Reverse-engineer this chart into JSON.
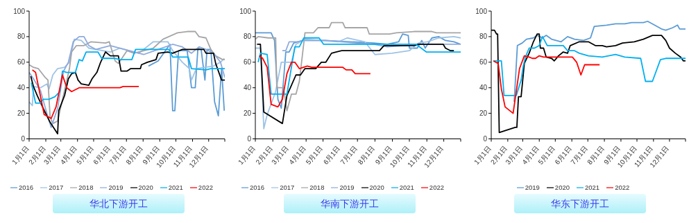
{
  "chart_data": [
    {
      "type": "line",
      "title": "华北下游开工",
      "xlim": [
        "--01-01",
        "--12-31"
      ],
      "ylim": [
        0,
        100
      ],
      "yticks": [
        0,
        20,
        40,
        60,
        80,
        100
      ],
      "xticks": [
        {
          "value": "--01-01",
          "label": "1月1日"
        },
        {
          "value": "--02-01",
          "label": "2月1日"
        },
        {
          "value": "--03-01",
          "label": "3月1日"
        },
        {
          "value": "--04-01",
          "label": "4月1日"
        },
        {
          "value": "--05-01",
          "label": "5月1日"
        },
        {
          "value": "--06-01",
          "label": "6月1日"
        },
        {
          "value": "--07-01",
          "label": "7月1日"
        },
        {
          "value": "--08-01",
          "label": "8月1日"
        },
        {
          "value": "--09-01",
          "label": "9月1日"
        },
        {
          "value": "--10-01",
          "label": "10月1日"
        },
        {
          "value": "--11-01",
          "label": "11月1日"
        },
        {
          "value": "--12-01",
          "label": "12月1日"
        },
        {
          "value": "--12-31",
          "label": null
        }
      ],
      "legend": "bottom",
      "series": [
        {
          "name": "2016",
          "color": "#5b9bd5",
          "x": [
            "--08-11",
            "--08-29",
            "--09-20",
            "--09-25",
            "--09-29",
            "--10-06",
            "--10-22",
            "--10-30",
            "--11-06",
            "--11-11",
            "--11-17",
            "--11-24",
            "--11-28",
            "--12-05",
            "--12-12",
            "--12-19",
            "--12-25",
            "--12-30"
          ],
          "values": [
            57,
            61,
            74,
            22,
            22,
            69,
            69,
            40,
            40,
            71,
            70,
            46,
            70,
            70,
            29,
            18,
            55,
            22
          ]
        },
        {
          "name": "2017",
          "color": "#9dc3e6",
          "x": [
            "--01-01",
            "--01-07",
            "--01-09",
            "--01-22",
            "--02-03",
            "--02-07",
            "--02-14",
            "--02-23",
            "--03-08",
            "--03-17",
            "--03-26",
            "--04-08",
            "--04-22",
            "--06-01",
            "--06-19",
            "--07-24",
            "--08-20",
            "--09-16",
            "--09-25",
            "--10-13",
            "--10-26",
            "--10-30",
            "--11-08",
            "--12-10",
            "--12-23",
            "--12-30"
          ],
          "values": [
            29,
            26,
            41,
            40,
            43,
            39,
            50,
            55,
            56,
            60,
            78,
            77,
            71,
            68,
            71,
            67,
            76,
            76,
            69,
            60,
            55,
            46,
            55,
            57,
            60,
            63
          ]
        },
        {
          "name": "2018",
          "color": "#a5a5a5",
          "x": [
            "--01-01",
            "--01-09",
            "--01-18",
            "--01-31",
            "--02-05",
            "--02-09",
            "--02-14",
            "--02-23",
            "--03-17",
            "--03-21",
            "--03-30",
            "--04-13",
            "--04-26",
            "--05-23",
            "--05-30",
            "--06-10",
            "--06-16",
            "--07-02",
            "--07-15",
            "--08-20",
            "--09-07",
            "--10-04",
            "--10-22",
            "--11-06",
            "--11-13",
            "--11-26",
            "--12-05",
            "--12-14",
            "--12-27",
            "--12-31"
          ],
          "values": [
            58,
            56,
            55,
            48,
            46,
            17,
            12,
            14,
            55,
            68,
            73,
            73,
            76,
            75,
            76,
            61,
            59,
            69,
            67,
            71,
            78,
            83,
            84,
            84,
            80,
            79,
            70,
            65,
            62,
            62
          ]
        },
        {
          "name": "2019",
          "color": "#8faadc",
          "x": [
            "--01-01",
            "--01-09",
            "--01-22",
            "--02-05",
            "--02-11",
            "--02-23",
            "--03-06",
            "--03-15",
            "--03-24",
            "--04-04",
            "--04-13",
            "--04-22",
            "--05-05",
            "--06-01",
            "--07-06",
            "--08-02",
            "--08-29",
            "--09-25",
            "--10-13",
            "--10-30",
            "--11-13",
            "--11-26",
            "--12-10",
            "--12-23",
            "--12-31"
          ],
          "values": [
            52,
            47,
            38,
            17,
            9,
            24,
            53,
            60,
            76,
            80,
            80,
            73,
            70,
            73,
            69,
            66,
            70,
            74,
            72,
            67,
            72,
            70,
            67,
            60,
            48
          ]
        },
        {
          "name": "2020",
          "color": "#000000",
          "x": [
            "--01-04",
            "--01-09",
            "--01-16",
            "--01-27",
            "--02-09",
            "--02-23",
            "--02-25",
            "--03-08",
            "--03-15",
            "--03-21",
            "--03-28",
            "--04-02",
            "--04-08",
            "--04-22",
            "--04-28",
            "--05-07",
            "--05-14",
            "--05-23",
            "--06-01",
            "--06-16",
            "--06-21",
            "--07-02",
            "--07-09",
            "--07-27",
            "--07-29",
            "--08-09",
            "--08-25",
            "--08-29",
            "--09-16",
            "--09-25",
            "--10-13",
            "--11-22",
            "--11-26",
            "--12-10",
            "--12-14",
            "--12-25",
            "--12-31"
          ],
          "values": [
            49,
            41,
            34,
            24,
            13,
            4,
            22,
            34,
            47,
            51,
            52,
            46,
            43,
            42,
            47,
            52,
            60,
            68,
            65,
            65,
            53,
            53,
            55,
            55,
            58,
            60,
            62,
            67,
            68,
            67,
            70,
            70,
            67,
            67,
            59,
            46,
            46
          ]
        },
        {
          "name": "2021",
          "color": "#00b0f0",
          "x": [
            "--01-05",
            "--01-13",
            "--01-22",
            "--01-27",
            "--02-07",
            "--02-18",
            "--02-27",
            "--03-04",
            "--03-12",
            "--03-28",
            "--04-04",
            "--04-10",
            "--04-17",
            "--05-09",
            "--05-16",
            "--06-10",
            "--06-19",
            "--07-11",
            "--07-18",
            "--09-18",
            "--09-25",
            "--10-24",
            "--10-30",
            "--11-26",
            "--12-05",
            "--12-31"
          ],
          "values": [
            44,
            28,
            28,
            31,
            31,
            33,
            37,
            53,
            52,
            52,
            62,
            61,
            68,
            68,
            63,
            63,
            62,
            62,
            70,
            70,
            64,
            64,
            55,
            54,
            55,
            55
          ]
        },
        {
          "name": "2022",
          "color": "#ff0000",
          "x": [
            "--01-07",
            "--01-13",
            "--01-29",
            "--02-11",
            "--02-20",
            "--03-04",
            "--03-12",
            "--03-21",
            "--04-04",
            "--06-19",
            "--06-25",
            "--07-24"
          ],
          "values": [
            54,
            52,
            19,
            16,
            25,
            50,
            40,
            37,
            40,
            40,
            41,
            41
          ]
        }
      ]
    },
    {
      "type": "line",
      "title": "华南下游开工",
      "xlim": [
        "--01-01",
        "--12-31"
      ],
      "ylim": [
        0,
        100
      ],
      "yticks": [
        0,
        20,
        40,
        60,
        80,
        100
      ],
      "xticks": [
        {
          "value": "--01-01",
          "label": "1月1日"
        },
        {
          "value": "--02-01",
          "label": "2月1日"
        },
        {
          "value": "--03-01",
          "label": "3月1日"
        },
        {
          "value": "--04-01",
          "label": "4月1日"
        },
        {
          "value": "--05-01",
          "label": "5月1日"
        },
        {
          "value": "--06-01",
          "label": "6月1日"
        },
        {
          "value": "--07-01",
          "label": "7月1日"
        },
        {
          "value": "--08-01",
          "label": "8月1日"
        },
        {
          "value": "--09-01",
          "label": "9月1日"
        },
        {
          "value": "--10-01",
          "label": "10月1日"
        },
        {
          "value": "--11-01",
          "label": "11月1日"
        },
        {
          "value": "--12-01",
          "label": "12月1日"
        },
        {
          "value": "--12-31",
          "label": null
        }
      ],
      "legend": "bottom",
      "series": [
        {
          "name": "2016",
          "color": "#5b9bd5",
          "x": [
            "--01-01",
            "--01-29",
            "--02-04",
            "--02-10",
            "--02-16",
            "--02-24",
            "--03-02",
            "--03-10",
            "--03-26",
            "--05-04",
            "--07-30",
            "--08-23",
            "--09-12",
            "--09-19",
            "--09-29",
            "--10-01",
            "--10-15",
            "--10-23",
            "--10-29",
            "--11-10",
            "--11-22",
            "--12-04",
            "--12-19",
            "--12-31"
          ],
          "values": [
            83,
            83,
            77,
            31,
            24,
            68,
            68,
            75,
            77,
            77,
            75,
            74,
            76,
            82,
            81,
            71,
            71,
            77,
            71,
            79,
            80,
            77,
            76,
            74
          ]
        },
        {
          "name": "2017",
          "color": "#9dc3e6",
          "x": [
            "--01-01",
            "--01-10",
            "--01-16",
            "--01-22",
            "--02-06",
            "--02-16",
            "--03-06",
            "--03-14",
            "--03-30",
            "--05-28",
            "--06-13",
            "--07-14",
            "--08-01",
            "--08-31",
            "--10-01",
            "--10-17",
            "--11-02",
            "--11-22",
            "--12-19",
            "--12-31"
          ],
          "values": [
            71,
            71,
            8,
            19,
            37,
            60,
            60,
            74,
            78,
            76,
            79,
            76,
            66,
            67,
            69,
            75,
            76,
            79,
            80,
            79
          ]
        },
        {
          "name": "2018",
          "color": "#a5a5a5",
          "x": [
            "--01-01",
            "--01-06",
            "--01-24",
            "--02-06",
            "--02-08",
            "--02-20",
            "--02-26",
            "--03-06",
            "--03-14",
            "--03-20",
            "--03-30",
            "--04-14",
            "--04-22",
            "--05-12",
            "--05-16",
            "--06-05",
            "--06-09",
            "--07-18",
            "--07-22",
            "--08-27",
            "--09-08",
            "--10-09",
            "--11-10",
            "--11-18",
            "--12-31"
          ],
          "values": [
            78,
            80,
            79,
            79,
            40,
            40,
            22,
            35,
            35,
            45,
            83,
            83,
            87,
            87,
            91,
            91,
            87,
            87,
            82,
            82,
            83,
            84,
            84,
            83,
            83
          ]
        },
        {
          "name": "2019",
          "color": "#8faadc",
          "x": [
            "--02-18",
            "--02-24",
            "--03-02",
            "--03-18",
            "--03-26",
            "--05-04",
            "--07-30",
            "--08-23",
            "--10-21",
            "--12-31"
          ],
          "values": [
            69,
            69,
            76,
            76,
            77,
            77,
            74,
            72,
            74,
            74
          ]
        },
        {
          "name": "2020",
          "color": "#000000",
          "x": [
            "--01-04",
            "--01-10",
            "--01-16",
            "--02-18",
            "--02-26",
            "--03-06",
            "--03-14",
            "--03-22",
            "--03-30",
            "--04-18",
            "--04-28",
            "--05-06",
            "--05-16",
            "--05-24",
            "--06-03",
            "--08-09",
            "--08-17",
            "--10-09",
            "--10-17",
            "--11-30",
            "--12-04",
            "--12-13",
            "--12-19"
          ],
          "values": [
            74,
            74,
            21,
            12,
            34,
            42,
            50,
            50,
            55,
            55,
            60,
            60,
            67,
            68,
            69,
            69,
            73,
            73,
            74,
            74,
            71,
            69,
            69
          ]
        },
        {
          "name": "2021",
          "color": "#00b0f0",
          "x": [
            "--01-06",
            "--01-10",
            "--01-22",
            "--01-29",
            "--02-26",
            "--03-12",
            "--03-20",
            "--03-28",
            "--04-24",
            "--05-02",
            "--10-13",
            "--10-31",
            "--12-31"
          ],
          "values": [
            60,
            67,
            66,
            35,
            35,
            72,
            72,
            79,
            79,
            74,
            74,
            68,
            68
          ]
        },
        {
          "name": "2022",
          "color": "#ff0000",
          "x": [
            "--01-08",
            "--01-14",
            "--01-22",
            "--01-29",
            "--02-10",
            "--02-18",
            "--02-26",
            "--03-06",
            "--03-12",
            "--03-20",
            "--04-03",
            "--04-11",
            "--06-05",
            "--06-11",
            "--06-21",
            "--06-27",
            "--07-24"
          ],
          "values": [
            65,
            63,
            56,
            27,
            25,
            31,
            51,
            60,
            60,
            55,
            57,
            56,
            56,
            54,
            54,
            51,
            51
          ]
        }
      ]
    },
    {
      "type": "line",
      "title": "华东下游开工",
      "xlim": [
        "--01-01",
        "--12-31"
      ],
      "ylim": [
        0,
        100
      ],
      "yticks": [
        0,
        20,
        40,
        60,
        80,
        100
      ],
      "xticks": [
        {
          "value": "--01-01",
          "label": "1月1日"
        },
        {
          "value": "--02-01",
          "label": "2月1日"
        },
        {
          "value": "--03-01",
          "label": "3月1日"
        },
        {
          "value": "--04-01",
          "label": "4月1日"
        },
        {
          "value": "--05-01",
          "label": "5月1日"
        },
        {
          "value": "--06-01",
          "label": "6月1日"
        },
        {
          "value": "--07-01",
          "label": "7月1日"
        },
        {
          "value": "--08-01",
          "label": "8月1日"
        },
        {
          "value": "--09-01",
          "label": "9月1日"
        },
        {
          "value": "--10-01",
          "label": "10月1日"
        },
        {
          "value": "--11-01",
          "label": "11月1日"
        },
        {
          "value": "--12-01",
          "label": "12月1日"
        },
        {
          "value": "--12-31",
          "label": null
        }
      ],
      "legend": "bottom",
      "series": [
        {
          "name": "2019",
          "color": "#5b9bd5",
          "x": [
            "--02-13",
            "--02-19",
            "--02-28",
            "--03-08",
            "--03-21",
            "--03-28",
            "--04-07",
            "--04-14",
            "--04-24",
            "--05-12",
            "--05-24",
            "--06-06",
            "--06-23",
            "--07-06",
            "--07-13",
            "--08-05",
            "--08-22",
            "--09-08",
            "--09-21",
            "--10-13",
            "--10-21",
            "--10-30",
            "--11-16",
            "--11-24",
            "--12-07",
            "--12-16",
            "--12-20",
            "--12-31"
          ],
          "values": [
            29,
            73,
            75,
            78,
            79,
            81,
            79,
            81,
            78,
            76,
            80,
            78,
            77,
            79,
            88,
            89,
            90,
            90,
            91,
            91,
            92,
            90,
            86,
            85,
            87,
            89,
            86,
            86
          ]
        },
        {
          "name": "2020",
          "color": "#000000",
          "x": [
            "--01-01",
            "--01-07",
            "--01-11",
            "--01-13",
            "--01-16",
            "--02-15",
            "--02-18",
            "--02-21",
            "--02-26",
            "--03-04",
            "--03-13",
            "--03-21",
            "--03-28",
            "--04-01",
            "--04-03",
            "--04-09",
            "--04-14",
            "--04-24",
            "--04-29",
            "--05-07",
            "--05-16",
            "--05-24",
            "--05-29",
            "--06-15",
            "--07-02",
            "--07-15",
            "--07-28",
            "--08-05",
            "--08-22",
            "--09-04",
            "--09-26",
            "--10-13",
            "--10-30",
            "--11-16",
            "--11-24",
            "--12-01",
            "--12-12",
            "--12-22",
            "--12-27",
            "--12-31"
          ],
          "values": [
            85,
            85,
            82,
            82,
            5,
            9,
            9,
            33,
            33,
            59,
            67,
            76,
            82,
            82,
            71,
            71,
            64,
            63,
            61,
            65,
            68,
            67,
            73,
            76,
            76,
            73,
            73,
            72,
            73,
            75,
            76,
            78,
            81,
            81,
            77,
            71,
            67,
            64,
            61,
            61
          ]
        },
        {
          "name": "2021",
          "color": "#00b0f0",
          "x": [
            "--01-05",
            "--01-20",
            "--01-25",
            "--02-17",
            "--02-26",
            "--03-02",
            "--03-06",
            "--03-13",
            "--03-23",
            "--04-01",
            "--04-07",
            "--04-16",
            "--05-16",
            "--05-24",
            "--06-06",
            "--06-15",
            "--07-02",
            "--07-28",
            "--08-22",
            "--09-08",
            "--10-08",
            "--10-17",
            "--10-30",
            "--11-14",
            "--11-24",
            "--12-31"
          ],
          "values": [
            61,
            61,
            34,
            34,
            46,
            57,
            64,
            71,
            71,
            73,
            80,
            73,
            73,
            69,
            69,
            67,
            65,
            64,
            66,
            64,
            63,
            45,
            45,
            62,
            63,
            63
          ]
        },
        {
          "name": "2022",
          "color": "#ff0000",
          "x": [
            "--01-05",
            "--01-14",
            "--01-20",
            "--01-27",
            "--02-11",
            "--02-23",
            "--03-04",
            "--03-13",
            "--03-19",
            "--03-25",
            "--04-01",
            "--04-09",
            "--06-02",
            "--06-10",
            "--06-18",
            "--06-25",
            "--07-23"
          ],
          "values": [
            61,
            59,
            39,
            25,
            20,
            55,
            65,
            64,
            63,
            63,
            65,
            64,
            64,
            60,
            50,
            58,
            58
          ]
        }
      ]
    }
  ]
}
